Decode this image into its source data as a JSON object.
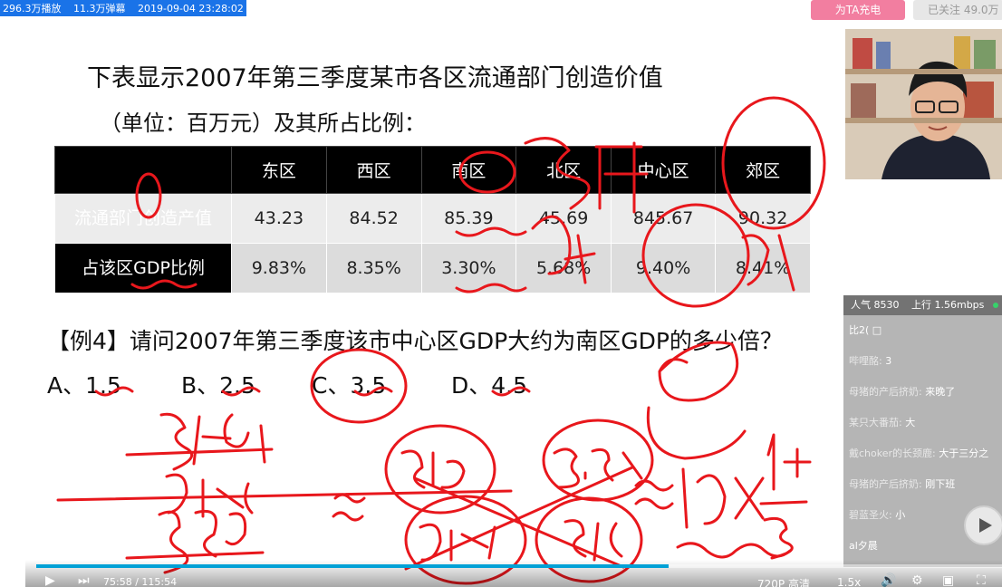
{
  "header": {
    "play_count": "296.3万播放",
    "danmaku_count": "11.3万弹幕",
    "datetime": "2019-09-04 23:28:02",
    "charge_label": "为TA充电",
    "follow_label": "已关注 49.0万"
  },
  "slide": {
    "title": "下表显示2007年第三季度某市各区流通部门创造价值",
    "subtitle": "（单位：百万元）及其所占比例：",
    "table": {
      "columns": [
        "东区",
        "西区",
        "南区",
        "北区",
        "中心区",
        "郊区"
      ],
      "rows": [
        {
          "label": "流通部门创造产值",
          "values": [
            "43.23",
            "84.52",
            "85.39",
            "45.69",
            "845.67",
            "90.32"
          ]
        },
        {
          "label": "占该区GDP比例",
          "values": [
            "9.83%",
            "8.35%",
            "3.30%",
            "5.68%",
            "9.40%",
            "8.41%"
          ]
        }
      ]
    },
    "question": "【例4】请问2007年第三季度该市中心区GDP大约为南区GDP的多少倍？",
    "options": [
      {
        "letter": "A、",
        "value": "1.5"
      },
      {
        "letter": "B、",
        "value": "2.5"
      },
      {
        "letter": "C、",
        "value": "3.5"
      },
      {
        "letter": "D、",
        "value": "4.5"
      }
    ]
  },
  "chat": {
    "popularity": "人气 8530",
    "upload": "上行 1.56mbps",
    "messages": [
      {
        "user": "",
        "text": "比2(  □"
      },
      {
        "user": "哔哩酩:",
        "text": "3"
      },
      {
        "user": "母猪的产后挤奶:",
        "text": "来晚了"
      },
      {
        "user": "某只大番茄:",
        "text": "大"
      },
      {
        "user": "戴choker的长颈鹿:",
        "text": "大于三分之"
      },
      {
        "user": "母猪的产后挤奶:",
        "text": "刚下班"
      },
      {
        "user": "碧蓝圣火:",
        "text": "小"
      },
      {
        "user": "",
        "text": "al夕晨"
      }
    ]
  },
  "player": {
    "current_time": "75:58",
    "total_time": "115:54",
    "progress_percent": 65.5,
    "quality": "720P 高清",
    "speed": "1.5x"
  },
  "colors": {
    "ink": "#e8171c",
    "progress": "#00a1d6",
    "charge_bg": "#f27ea0"
  }
}
